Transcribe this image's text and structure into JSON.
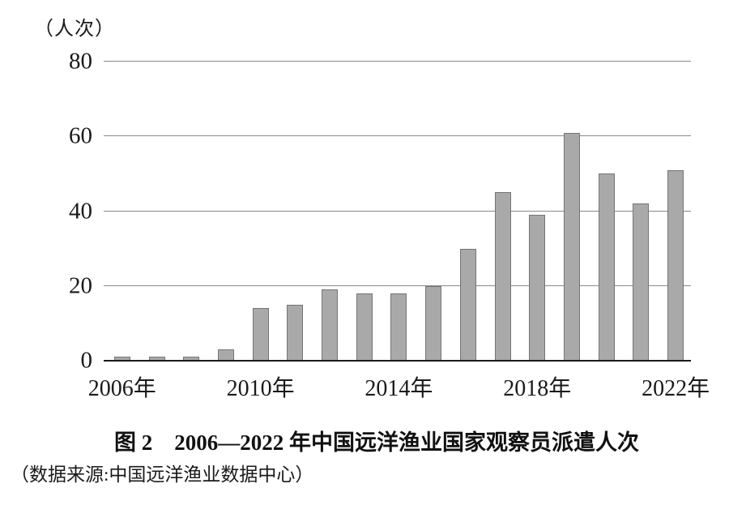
{
  "figure": {
    "caption": "图 2　2006—2022 年中国远洋渔业国家观察员派遣人次",
    "source": "（数据来源:中国远洋渔业数据中心）",
    "unit_label": "（人次）"
  },
  "chart_data": {
    "type": "bar",
    "title": "图 2　2006—2022 年中国远洋渔业国家观察员派遣人次",
    "unit_label": "（人次）",
    "source": "（数据来源:中国远洋渔业数据中心）",
    "categories": [
      2006,
      2007,
      2008,
      2009,
      2010,
      2011,
      2012,
      2013,
      2014,
      2015,
      2016,
      2017,
      2018,
      2019,
      2020,
      2021,
      2022
    ],
    "values": [
      1,
      1,
      1,
      3,
      14,
      15,
      19,
      18,
      18,
      20,
      30,
      45,
      39,
      61,
      50,
      42,
      51
    ],
    "xlabel": "",
    "ylabel": "人次",
    "ylim": [
      0,
      80
    ],
    "y_ticks": [
      0,
      20,
      40,
      60,
      80
    ],
    "x_tick_labels": [
      "2006年",
      "2010年",
      "2014年",
      "2018年",
      "2022年"
    ],
    "x_tick_indices": [
      0,
      4,
      8,
      12,
      16
    ],
    "grid": true,
    "legend": "none",
    "bar_color": "#a9a9a9",
    "bar_border_color": "#757575",
    "gridline_color": "#8a8a8a",
    "axis_color": "#1a1a1a"
  }
}
